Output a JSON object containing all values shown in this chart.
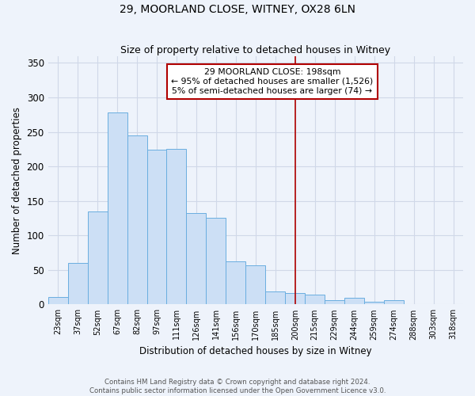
{
  "title": "29, MOORLAND CLOSE, WITNEY, OX28 6LN",
  "subtitle": "Size of property relative to detached houses in Witney",
  "xlabel": "Distribution of detached houses by size in Witney",
  "ylabel": "Number of detached properties",
  "categories": [
    "23sqm",
    "37sqm",
    "52sqm",
    "67sqm",
    "82sqm",
    "97sqm",
    "111sqm",
    "126sqm",
    "141sqm",
    "156sqm",
    "170sqm",
    "185sqm",
    "200sqm",
    "215sqm",
    "229sqm",
    "244sqm",
    "259sqm",
    "274sqm",
    "288sqm",
    "303sqm",
    "318sqm"
  ],
  "values": [
    11,
    60,
    135,
    278,
    245,
    224,
    225,
    132,
    125,
    63,
    57,
    19,
    17,
    14,
    6,
    10,
    4,
    6,
    0,
    0,
    0
  ],
  "bar_color": "#ccdff5",
  "bar_edge_color": "#6aaee0",
  "vline_x_index": 12,
  "vline_color": "#b00000",
  "ylim": [
    0,
    360
  ],
  "yticks": [
    0,
    50,
    100,
    150,
    200,
    250,
    300,
    350
  ],
  "annotation_title": "29 MOORLAND CLOSE: 198sqm",
  "annotation_line1": "← 95% of detached houses are smaller (1,526)",
  "annotation_line2": "5% of semi-detached houses are larger (74) →",
  "footer1": "Contains HM Land Registry data © Crown copyright and database right 2024.",
  "footer2": "Contains public sector information licensed under the Open Government Licence v3.0.",
  "background_color": "#eef3fb",
  "grid_color": "#d0d8e8"
}
